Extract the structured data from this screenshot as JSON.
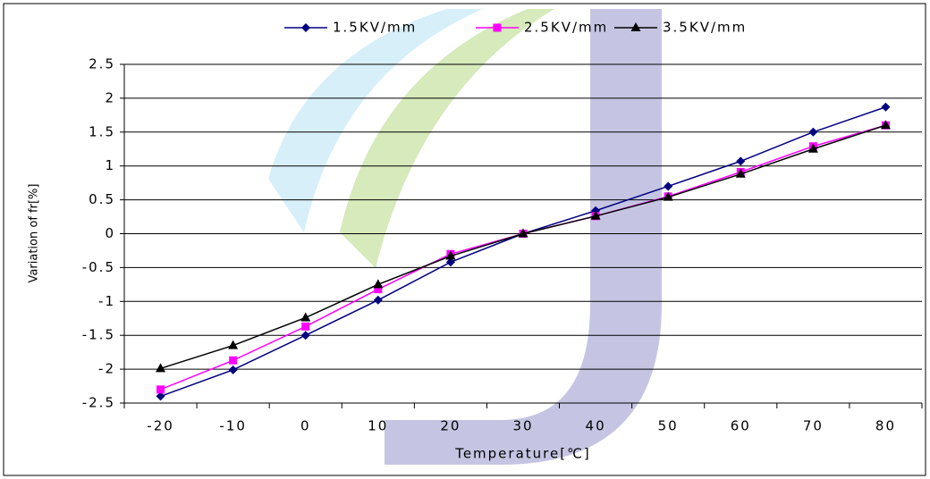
{
  "chart_data": {
    "type": "line",
    "x_label": "Temperature[℃]",
    "y_label": "Variation of fr[%]",
    "categories": [
      "-20",
      "-10",
      "0",
      "10",
      "20",
      "30",
      "40",
      "50",
      "60",
      "70",
      "80"
    ],
    "series": [
      {
        "name": "1.5KV/mm",
        "color": "#000080",
        "marker": "diamond",
        "values": [
          -2.4,
          -2.01,
          -1.5,
          -0.98,
          -0.42,
          0,
          0.34,
          0.7,
          1.07,
          1.5,
          1.87
        ]
      },
      {
        "name": "2.5KV/mm",
        "color": "#ff00ff",
        "marker": "square",
        "values": [
          -2.3,
          -1.87,
          -1.37,
          -0.82,
          -0.3,
          0,
          0.26,
          0.55,
          0.91,
          1.29,
          1.6
        ]
      },
      {
        "name": "3.5KV/mm",
        "color": "#000000",
        "marker": "triangle",
        "values": [
          -1.99,
          -1.65,
          -1.24,
          -0.75,
          -0.33,
          0,
          0.26,
          0.54,
          0.88,
          1.25,
          1.6
        ]
      }
    ],
    "ylim": [
      -2.5,
      2.5
    ],
    "yticks": [
      -2.5,
      -2,
      -1.5,
      -1,
      -0.5,
      0,
      0.5,
      1,
      1.5,
      2,
      2.5
    ],
    "grid": true,
    "legend": "top"
  }
}
